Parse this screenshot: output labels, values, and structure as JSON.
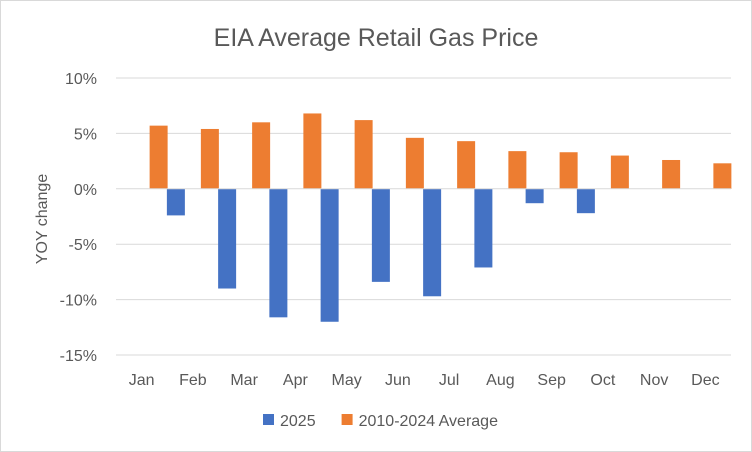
{
  "chart_data": {
    "type": "bar",
    "title": "EIA Average Retail Gas Price",
    "xlabel": "",
    "ylabel": "YOY change",
    "categories": [
      "Jan",
      "Feb",
      "Mar",
      "Apr",
      "May",
      "Jun",
      "Jul",
      "Aug",
      "Sep",
      "Oct",
      "Nov",
      "Dec"
    ],
    "series": [
      {
        "name": "2025",
        "color": "#4472c4",
        "values": [
          null,
          -2.4,
          -9.0,
          -11.6,
          -12.0,
          -8.4,
          -9.7,
          -7.1,
          -1.3,
          -2.2,
          null,
          null
        ]
      },
      {
        "name": "2010-2024 Average",
        "color": "#ed7d31",
        "values": [
          5.7,
          5.4,
          6.0,
          6.8,
          6.2,
          4.6,
          4.3,
          3.4,
          3.3,
          3.0,
          2.6,
          2.3
        ]
      }
    ],
    "ylim": [
      -15,
      10
    ],
    "yticks": [
      10,
      5,
      0,
      -5,
      -10,
      -15
    ],
    "ytick_labels": [
      "10%",
      "5%",
      "0%",
      "-5%",
      "-10%",
      "-15%"
    ],
    "grid": true,
    "legend_position": "bottom"
  },
  "colors": {
    "gridline": "#d9d9d9",
    "text": "#595959"
  }
}
